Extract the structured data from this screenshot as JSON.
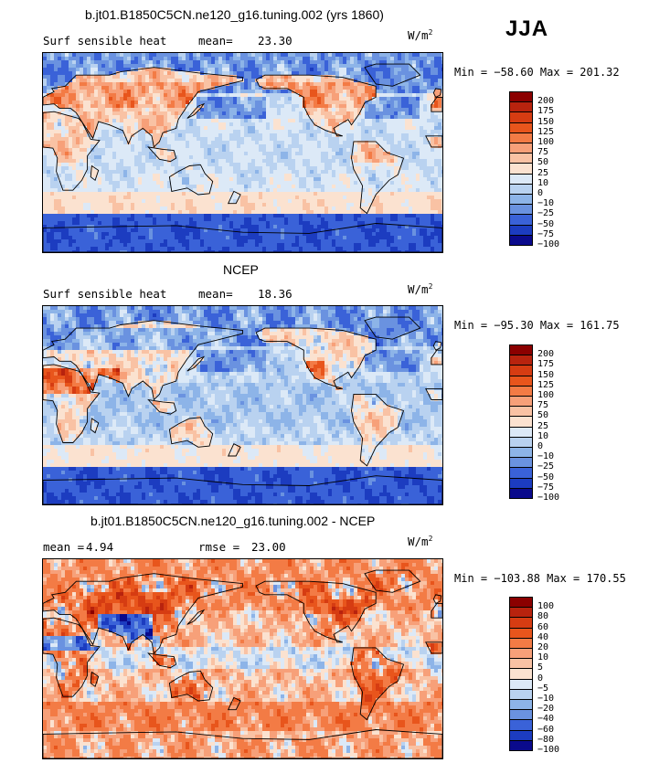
{
  "header": {
    "season": "JJA"
  },
  "chart_data": [
    {
      "type": "heatmap",
      "title": "b.jt01.B1850C5CN.ne120_g16.tuning.002 (yrs 1860)",
      "variable": "Surf sensible heat",
      "stat_label": "mean=",
      "stat_value": "23.30",
      "units_base": "W/m",
      "units_exp": "2",
      "minmax": "Min = −58.60 Max = 201.32",
      "min": -58.6,
      "max": 201.32,
      "legend_levels": [
        "200",
        "175",
        "150",
        "125",
        "100",
        "75",
        "50",
        "25",
        "10",
        "0",
        "−10",
        "−25",
        "−50",
        "−75",
        "−100"
      ],
      "legend_colors": [
        "#8b0000",
        "#b8230e",
        "#d63c12",
        "#e8551c",
        "#f37b45",
        "#f7a079",
        "#f9c2a4",
        "#fbe2d0",
        "#dce9f7",
        "#b9d2f0",
        "#8db4e8",
        "#6a92e0",
        "#3a62d8",
        "#1c3cc0",
        "#0a0a8c"
      ],
      "base_value": 22,
      "ocean_bias": 0,
      "land_anomaly": "warm_north"
    },
    {
      "type": "heatmap",
      "title": "NCEP",
      "variable": "Surf sensible heat",
      "stat_label": "mean=",
      "stat_value": "18.36",
      "units_base": "W/m",
      "units_exp": "2",
      "minmax": "Min = −95.30 Max = 161.75",
      "min": -95.3,
      "max": 161.75,
      "legend_levels": [
        "200",
        "175",
        "150",
        "125",
        "100",
        "75",
        "50",
        "25",
        "10",
        "0",
        "−10",
        "−25",
        "−50",
        "−75",
        "−100"
      ],
      "legend_colors": [
        "#8b0000",
        "#b8230e",
        "#d63c12",
        "#e8551c",
        "#f37b45",
        "#f7a079",
        "#f9c2a4",
        "#fbe2d0",
        "#dce9f7",
        "#b9d2f0",
        "#8db4e8",
        "#6a92e0",
        "#3a62d8",
        "#1c3cc0",
        "#0a0a8c"
      ],
      "base_value": 15,
      "ocean_bias": -8,
      "land_anomaly": "warm_desert"
    },
    {
      "type": "heatmap",
      "title": "b.jt01.B1850C5CN.ne120_g16.tuning.002 - NCEP",
      "variable": "",
      "stat_label": "mean =",
      "stat_value": "4.94",
      "rmse_label": "rmse =",
      "rmse_value": "23.00",
      "units_base": "W/m",
      "units_exp": "2",
      "minmax": "Min = −103.88 Max = 170.55",
      "min": -103.88,
      "max": 170.55,
      "legend_levels": [
        "100",
        "80",
        "60",
        "40",
        "20",
        "10",
        "5",
        "0",
        "−5",
        "−10",
        "−20",
        "−40",
        "−60",
        "−80",
        "−100"
      ],
      "legend_colors": [
        "#8b0000",
        "#b8230e",
        "#d63c12",
        "#e8551c",
        "#f37b45",
        "#f7a079",
        "#f9c2a4",
        "#fbe2d0",
        "#dce9f7",
        "#b9d2f0",
        "#8db4e8",
        "#6a92e0",
        "#3a62d8",
        "#1c3cc0",
        "#0a0a8c"
      ],
      "base_value": 12,
      "ocean_bias": 6,
      "land_anomaly": "diff"
    }
  ]
}
